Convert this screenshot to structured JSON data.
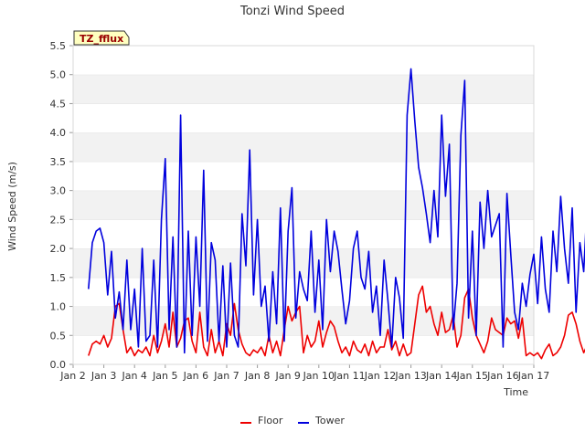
{
  "chart_data": {
    "type": "line",
    "title": "Tonzi Wind Speed",
    "xlabel": "Time",
    "ylabel": "Wind Speed (m/s)",
    "badge": "TZ_fflux",
    "xlim": [
      "2024-01-02",
      "2024-01-17"
    ],
    "ylim": [
      0.0,
      5.5
    ],
    "x_tick_labels": [
      "Jan 2",
      "Jan 3",
      "Jan 4",
      "Jan 5",
      "Jan 6",
      "Jan 7",
      "Jan 8",
      "Jan 9",
      "Jan 10",
      "Jan 11",
      "Jan 12",
      "Jan 13",
      "Jan 14",
      "Jan 15",
      "Jan 16",
      "Jan 17"
    ],
    "y_tick_labels": [
      "0.0",
      "0.5",
      "1.0",
      "1.5",
      "2.0",
      "2.5",
      "3.0",
      "3.5",
      "4.0",
      "4.5",
      "5.0",
      "5.5"
    ],
    "grid": "horizontal bands",
    "legend_position": "bottom-center",
    "x_start": "2024-01-02T12:00",
    "x_step_hours": 3,
    "series": [
      {
        "name": "Floor",
        "color": "#ee0000",
        "values": [
          0.15,
          0.35,
          0.4,
          0.35,
          0.5,
          0.3,
          0.45,
          1.0,
          1.05,
          0.6,
          0.2,
          0.3,
          0.15,
          0.25,
          0.2,
          0.3,
          0.15,
          0.5,
          0.2,
          0.4,
          0.7,
          0.3,
          0.9,
          0.3,
          0.45,
          0.75,
          0.8,
          0.4,
          0.2,
          0.9,
          0.3,
          0.15,
          0.6,
          0.2,
          0.4,
          0.15,
          0.7,
          0.5,
          1.05,
          0.6,
          0.35,
          0.2,
          0.15,
          0.25,
          0.2,
          0.3,
          0.15,
          0.5,
          0.2,
          0.4,
          0.15,
          0.6,
          1.0,
          0.75,
          0.9,
          1.0,
          0.2,
          0.5,
          0.3,
          0.4,
          0.75,
          0.3,
          0.55,
          0.75,
          0.65,
          0.4,
          0.2,
          0.3,
          0.15,
          0.4,
          0.25,
          0.2,
          0.35,
          0.15,
          0.4,
          0.2,
          0.3,
          0.3,
          0.6,
          0.25,
          0.4,
          0.15,
          0.35,
          0.15,
          0.2,
          0.7,
          1.2,
          1.35,
          0.9,
          1.0,
          0.7,
          0.5,
          0.9,
          0.55,
          0.6,
          0.85,
          0.3,
          0.5,
          1.15,
          1.3,
          0.8,
          0.5,
          0.35,
          0.2,
          0.4,
          0.8,
          0.6,
          0.55,
          0.5,
          0.8,
          0.7,
          0.75,
          0.45,
          0.8,
          0.15,
          0.2,
          0.15,
          0.2,
          0.1,
          0.25,
          0.35,
          0.15,
          0.2,
          0.3,
          0.5,
          0.85,
          0.9,
          0.7,
          0.4,
          0.2,
          0.35,
          0.6,
          0.15,
          0.3,
          0.45,
          0.2,
          0.5,
          0.35,
          0.3,
          0.15,
          0.2,
          1.15,
          1.55,
          1.2,
          1.3,
          1.25,
          0.25,
          0.4,
          0.15,
          0.45,
          0.35,
          0.2,
          0.4,
          0.3,
          0.15,
          0.2,
          0.5,
          0.6,
          0.35,
          0.4,
          0.2,
          0.25,
          0.4,
          0.35,
          0.3,
          0.45,
          0.3,
          0.6,
          0.35,
          0.5,
          0.55,
          0.25,
          0.75,
          0.45,
          0.2,
          0.8,
          0.3,
          0.65,
          0.15,
          0.45,
          0.2,
          0.3,
          0.15,
          0.7,
          0.4,
          0.2
        ]
      },
      {
        "name": "Tower",
        "color": "#0000dd",
        "values": [
          1.3,
          2.1,
          2.3,
          2.35,
          2.1,
          1.2,
          1.95,
          0.8,
          1.25,
          0.6,
          1.8,
          0.6,
          1.3,
          0.3,
          2.0,
          0.4,
          0.5,
          1.8,
          0.3,
          2.5,
          3.55,
          0.6,
          2.2,
          0.3,
          4.3,
          0.2,
          2.3,
          0.5,
          2.2,
          1.0,
          3.35,
          0.4,
          2.1,
          1.8,
          0.4,
          1.7,
          0.3,
          1.75,
          0.5,
          0.3,
          2.6,
          1.7,
          3.7,
          1.2,
          2.5,
          1.0,
          1.35,
          0.4,
          1.6,
          0.7,
          2.7,
          0.4,
          2.3,
          3.05,
          0.8,
          1.6,
          1.3,
          1.1,
          2.3,
          0.9,
          1.8,
          0.6,
          2.5,
          1.6,
          2.3,
          1.95,
          1.3,
          0.7,
          1.1,
          2.0,
          2.3,
          1.5,
          1.3,
          1.95,
          0.9,
          1.35,
          0.5,
          1.8,
          1.1,
          0.3,
          1.5,
          1.15,
          0.45,
          4.3,
          5.1,
          4.2,
          3.4,
          3.05,
          2.6,
          2.1,
          3.0,
          2.2,
          4.3,
          2.9,
          3.8,
          0.6,
          1.4,
          3.95,
          4.9,
          0.8,
          2.3,
          0.5,
          2.8,
          2.0,
          3.0,
          2.2,
          2.4,
          2.6,
          0.3,
          2.95,
          1.9,
          0.9,
          0.6,
          1.4,
          1.0,
          1.55,
          1.9,
          1.05,
          2.2,
          1.3,
          0.9,
          2.3,
          1.6,
          2.9,
          2.0,
          1.4,
          2.7,
          0.9,
          2.1,
          1.6,
          2.9,
          2.2,
          2.0,
          2.8,
          2.5,
          1.2,
          0.7,
          1.8,
          0.3,
          1.4,
          2.3,
          3.1,
          0.4,
          1.8,
          1.5,
          1.7,
          2.9,
          1.3,
          1.6,
          1.6,
          1.0,
          1.4,
          0.7,
          1.2,
          4.5,
          0.9,
          1.5,
          0.6,
          1.3,
          0.7,
          1.6,
          0.4,
          1.0,
          0.3,
          1.45,
          0.8,
          1.9,
          0.6,
          1.2,
          0.3,
          3.2,
          1.5,
          2.1,
          0.4,
          3.5,
          1.5,
          1.1,
          0.9,
          1.4,
          2.1,
          0.3,
          1.8,
          0.6,
          1.5,
          0.3,
          1.2,
          2.4,
          0.5,
          1.0,
          0.4
        ]
      }
    ]
  }
}
